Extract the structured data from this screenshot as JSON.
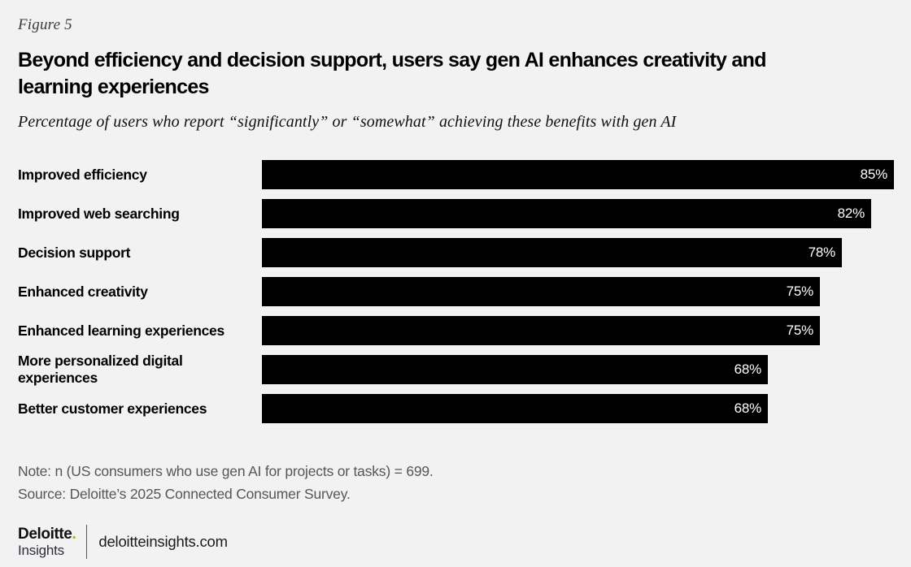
{
  "figure_label": "Figure 5",
  "title": "Beyond efficiency and decision support, users say gen AI enhances creativity and learning experiences",
  "subtitle": "Percentage of users who report “significantly” or “somewhat” achieving these benefits with gen AI",
  "chart_data": {
    "type": "bar",
    "orientation": "horizontal",
    "categories": [
      "Improved efficiency",
      "Improved web searching",
      "Decision support",
      "Enhanced creativity",
      "Enhanced learning experiences",
      "More personalized digital experiences",
      "Better customer experiences"
    ],
    "values": [
      85,
      82,
      78,
      75,
      75,
      68,
      68
    ],
    "value_suffix": "%",
    "xlim": [
      0,
      100
    ],
    "bar_color": "#000000",
    "value_label_color": "#ffffff",
    "grid": false,
    "legend": false,
    "value_labels_position": "inside-end"
  },
  "note": "Note: n (US consumers who use gen AI for projects or tasks) = 699.",
  "source": "Source: Deloitte’s 2025 Connected Consumer Survey.",
  "footer": {
    "brand": "Deloitte",
    "brand_dot": ".",
    "brand_sub": "Insights",
    "brand_dot_color": "#86bc25",
    "website": "deloitteinsights.com"
  },
  "colors": {
    "background": "#f2f2f2",
    "bar": "#000000",
    "note_text": "#54565a",
    "accent_green": "#86bc25"
  }
}
